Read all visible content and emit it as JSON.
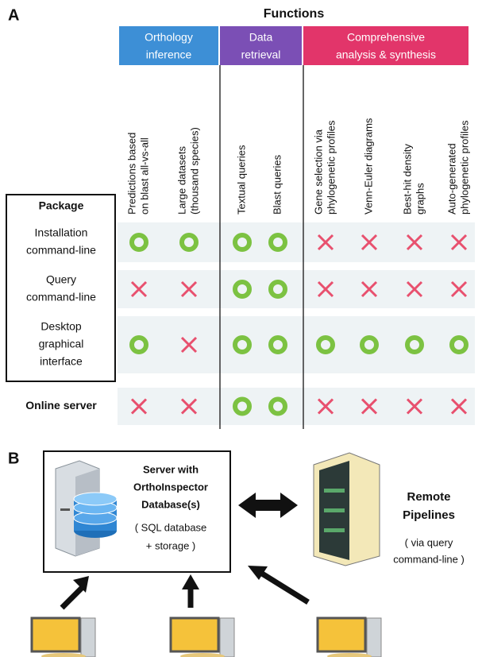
{
  "panel_a": {
    "label": "A",
    "title": "Functions",
    "groups": [
      {
        "label": [
          "Orthology",
          "inference"
        ],
        "color": "#3d8fd6"
      },
      {
        "label": [
          "Data",
          "retrieval"
        ],
        "color": "#7b4fb5"
      },
      {
        "label": [
          "Comprehensive",
          "analysis & synthesis"
        ],
        "color": "#e2356a"
      }
    ],
    "columns": [
      [
        "Predictions based",
        "on blast all-vs-all"
      ],
      [
        "Large datasets",
        "(thousand species)"
      ],
      [
        "Textual queries"
      ],
      [
        "Blast queries"
      ],
      [
        "Gene selection  via",
        "phylogenetic profiles"
      ],
      [
        "Venn-Euler diagrams"
      ],
      [
        "Best-hit density",
        "graphs"
      ],
      [
        "Auto-generated",
        "phylogenetic profiles"
      ]
    ],
    "package_header": "Package",
    "rows": [
      {
        "label": [
          "Installation",
          "command-line"
        ],
        "cells": [
          true,
          true,
          true,
          true,
          false,
          false,
          false,
          false
        ]
      },
      {
        "label": [
          "Query",
          "command-line"
        ],
        "cells": [
          false,
          false,
          true,
          true,
          false,
          false,
          false,
          false
        ]
      },
      {
        "label": [
          "Desktop",
          "graphical",
          "interface"
        ],
        "cells": [
          true,
          false,
          true,
          true,
          true,
          true,
          true,
          true
        ]
      },
      {
        "label": [
          "Online server"
        ],
        "cells": [
          false,
          false,
          true,
          true,
          false,
          false,
          false,
          false
        ]
      }
    ],
    "supported_color": "#7cc242",
    "unsupported_color": "#e8506e"
  },
  "panel_b": {
    "label": "B",
    "server": [
      "Server with",
      "OrthoInspector",
      "Database(s)"
    ],
    "server_note": [
      "( SQL database",
      "+ storage )"
    ],
    "remote": [
      "Remote",
      "Pipelines"
    ],
    "remote_note": [
      "( via query",
      "command-line )"
    ]
  }
}
